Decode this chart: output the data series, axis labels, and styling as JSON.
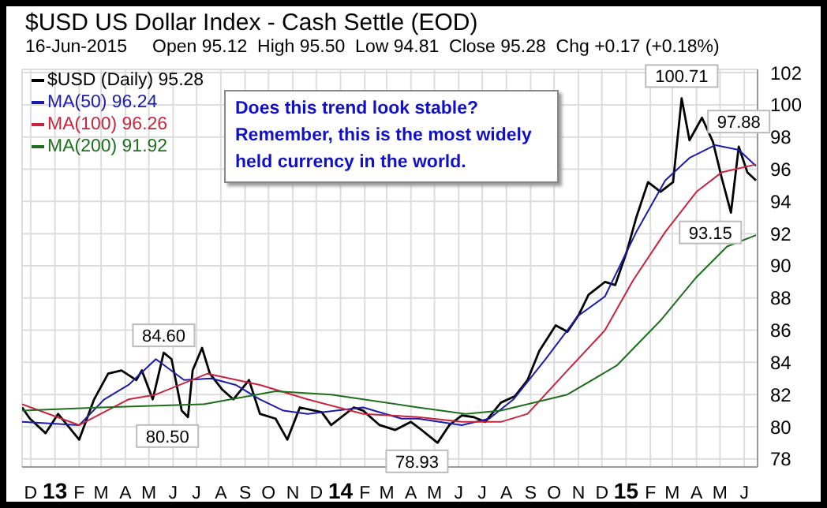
{
  "chart_data": {
    "type": "line",
    "title": "$USD US Dollar Index - Cash Settle (EOD)",
    "subtitle": "16-Jun-2015     Open 95.12  High 95.50  Low 94.81  Close 95.28  Chg +0.17 (+0.18%)",
    "xlim": [
      "2012-11-20",
      "2015-06-18"
    ],
    "xticks": [
      {
        "value": "2012-12-01",
        "label": "D"
      },
      {
        "value": "2013-01-01",
        "label": "13"
      },
      {
        "value": "2013-02-01",
        "label": "F"
      },
      {
        "value": "2013-03-01",
        "label": "M"
      },
      {
        "value": "2013-04-01",
        "label": "A"
      },
      {
        "value": "2013-05-01",
        "label": "M"
      },
      {
        "value": "2013-06-01",
        "label": "J"
      },
      {
        "value": "2013-07-01",
        "label": "J"
      },
      {
        "value": "2013-08-01",
        "label": "A"
      },
      {
        "value": "2013-09-01",
        "label": "S"
      },
      {
        "value": "2013-10-01",
        "label": "O"
      },
      {
        "value": "2013-11-01",
        "label": "N"
      },
      {
        "value": "2013-12-01",
        "label": "D"
      },
      {
        "value": "2014-01-01",
        "label": "14"
      },
      {
        "value": "2014-02-01",
        "label": "F"
      },
      {
        "value": "2014-03-01",
        "label": "M"
      },
      {
        "value": "2014-04-01",
        "label": "A"
      },
      {
        "value": "2014-05-01",
        "label": "M"
      },
      {
        "value": "2014-06-01",
        "label": "J"
      },
      {
        "value": "2014-07-01",
        "label": "J"
      },
      {
        "value": "2014-08-01",
        "label": "A"
      },
      {
        "value": "2014-09-01",
        "label": "S"
      },
      {
        "value": "2014-10-01",
        "label": "O"
      },
      {
        "value": "2014-11-01",
        "label": "N"
      },
      {
        "value": "2014-12-01",
        "label": "D"
      },
      {
        "value": "2015-01-01",
        "label": "15"
      },
      {
        "value": "2015-02-01",
        "label": "F"
      },
      {
        "value": "2015-03-01",
        "label": "M"
      },
      {
        "value": "2015-04-01",
        "label": "A"
      },
      {
        "value": "2015-05-01",
        "label": "M"
      },
      {
        "value": "2015-06-01",
        "label": "J"
      }
    ],
    "ylim": [
      77.5,
      102.2
    ],
    "yticks": [
      78,
      80,
      82,
      84,
      86,
      88,
      90,
      92,
      94,
      96,
      98,
      100,
      102
    ],
    "grid": true,
    "legend": "top left",
    "series": [
      {
        "name": "$USD (Daily) 95.28",
        "color": "#000000",
        "x": [
          "2012-11-20",
          "2012-11-30",
          "2012-12-20",
          "2013-01-05",
          "2013-02-01",
          "2013-02-20",
          "2013-03-10",
          "2013-03-27",
          "2013-04-15",
          "2013-04-22",
          "2013-05-06",
          "2013-05-20",
          "2013-05-30",
          "2013-06-12",
          "2013-06-20",
          "2013-06-26",
          "2013-07-08",
          "2013-07-18",
          "2013-08-03",
          "2013-08-17",
          "2013-09-06",
          "2013-09-20",
          "2013-10-10",
          "2013-10-25",
          "2013-11-10",
          "2013-12-08",
          "2013-12-20",
          "2014-01-18",
          "2014-01-30",
          "2014-02-20",
          "2014-03-12",
          "2014-04-01",
          "2014-04-12",
          "2014-05-05",
          "2014-05-20",
          "2014-06-05",
          "2014-06-20",
          "2014-07-05",
          "2014-07-25",
          "2014-08-12",
          "2014-08-28",
          "2014-09-12",
          "2014-10-03",
          "2014-10-18",
          "2014-11-02",
          "2014-11-14",
          "2014-12-05",
          "2014-12-18",
          "2015-01-02",
          "2015-01-14",
          "2015-01-29",
          "2015-02-14",
          "2015-03-02",
          "2015-03-13",
          "2015-03-23",
          "2015-04-08",
          "2015-04-22",
          "2015-05-03",
          "2015-05-15",
          "2015-05-25",
          "2015-06-05",
          "2015-06-16"
        ],
        "values": [
          81.2,
          80.5,
          79.6,
          80.8,
          79.2,
          81.7,
          83.3,
          83.5,
          82.9,
          83.5,
          81.7,
          84.6,
          84.2,
          81.0,
          80.6,
          83.5,
          84.9,
          83.3,
          82.3,
          81.7,
          82.9,
          80.8,
          80.5,
          79.2,
          81.2,
          80.9,
          80.1,
          81.2,
          81.0,
          80.1,
          79.8,
          80.3,
          79.9,
          79.0,
          80.1,
          80.7,
          80.6,
          80.3,
          81.5,
          81.9,
          82.9,
          84.7,
          86.3,
          85.9,
          87.0,
          88.2,
          89.0,
          88.8,
          90.9,
          93.0,
          95.2,
          94.6,
          95.2,
          100.4,
          97.8,
          99.2,
          97.7,
          95.5,
          93.3,
          97.4,
          95.8,
          95.3
        ]
      },
      {
        "name": "MA(50) 96.24",
        "color": "#1c1ca8",
        "x": [
          "2012-11-20",
          "2013-02-01",
          "2013-03-05",
          "2013-04-05",
          "2013-05-10",
          "2013-06-15",
          "2013-07-20",
          "2013-08-20",
          "2013-09-20",
          "2013-10-20",
          "2013-11-20",
          "2014-01-30",
          "2014-03-20",
          "2014-04-10",
          "2014-06-05",
          "2014-07-10",
          "2014-08-10",
          "2014-09-20",
          "2014-11-01",
          "2014-12-05",
          "2015-01-14",
          "2015-02-20",
          "2015-03-23",
          "2015-04-25",
          "2015-05-25",
          "2015-06-16"
        ],
        "values": [
          80.3,
          80.1,
          81.7,
          82.6,
          84.2,
          82.9,
          83.0,
          82.6,
          81.7,
          81.0,
          80.8,
          81.2,
          80.5,
          80.5,
          80.1,
          80.5,
          81.7,
          84.2,
          86.9,
          88.1,
          92.1,
          95.3,
          96.7,
          97.5,
          97.2,
          96.2
        ]
      },
      {
        "name": "MA(100) 96.26",
        "color": "#c8243c",
        "x": [
          "2012-11-20",
          "2013-02-01",
          "2013-04-05",
          "2013-05-10",
          "2013-07-15",
          "2013-09-20",
          "2013-11-20",
          "2014-01-30",
          "2014-04-10",
          "2014-06-05",
          "2014-07-25",
          "2014-08-28",
          "2014-10-18",
          "2014-12-05",
          "2015-01-10",
          "2015-02-20",
          "2015-04-01",
          "2015-05-03",
          "2015-06-16"
        ],
        "values": [
          81.4,
          80.1,
          81.7,
          82.0,
          83.3,
          82.6,
          81.7,
          80.8,
          80.6,
          80.3,
          80.3,
          80.8,
          83.5,
          86.0,
          89.1,
          92.1,
          94.6,
          95.8,
          96.3
        ]
      },
      {
        "name": "MA(200) 91.92",
        "color": "#1e6e1e",
        "x": [
          "2012-11-20",
          "2013-03-01",
          "2013-07-10",
          "2013-10-10",
          "2013-12-20",
          "2014-04-10",
          "2014-06-10",
          "2014-07-25",
          "2014-10-18",
          "2014-12-20",
          "2015-02-14",
          "2015-04-01",
          "2015-05-10",
          "2015-06-16"
        ],
        "values": [
          81.0,
          81.2,
          81.4,
          82.2,
          82.0,
          81.2,
          80.8,
          81.0,
          82.0,
          83.8,
          86.6,
          89.3,
          91.2,
          91.9
        ]
      }
    ],
    "annotations": [
      {
        "text": "100.71",
        "x": "2015-03-13",
        "y": 100.71
      },
      {
        "text": "97.88",
        "x": "2015-05-25",
        "y": 97.88
      },
      {
        "text": "93.15",
        "x": "2015-05-15",
        "y": 93.15
      },
      {
        "text": "84.60",
        "x": "2013-05-20",
        "y": 84.6
      },
      {
        "text": "80.50",
        "x": "2013-06-20",
        "y": 80.5
      },
      {
        "text": "78.93",
        "x": "2014-05-05",
        "y": 78.93
      },
      "Does this trend look stable? Remember, this is the most widely held currency in the world."
    ]
  }
}
